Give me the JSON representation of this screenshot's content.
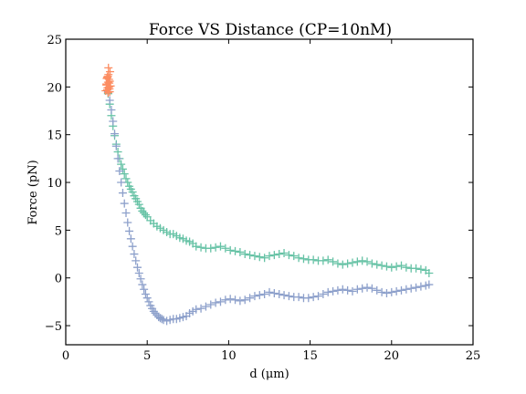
{
  "chart_data": {
    "type": "scatter",
    "title": "Force VS Distance (CP=10nM)",
    "xlabel": "d (μm)",
    "ylabel": "Force (pN)",
    "xlim": [
      0,
      25
    ],
    "ylim": [
      -7,
      25
    ],
    "xticks": [
      0,
      5,
      10,
      15,
      20,
      25
    ],
    "yticks": [
      -5,
      0,
      5,
      10,
      15,
      20,
      25
    ],
    "grid": false,
    "marker": "+",
    "series": [
      {
        "color": "#66c2a5",
        "x": [
          2.6,
          2.7,
          2.8,
          2.9,
          3.0,
          3.1,
          3.2,
          3.3,
          3.4,
          3.5,
          3.6,
          3.7,
          3.8,
          3.9,
          4.0,
          4.1,
          4.2,
          4.3,
          4.4,
          4.5,
          4.6,
          4.7,
          4.8,
          4.9,
          5.0,
          5.2,
          5.4,
          5.6,
          5.8,
          6.0,
          6.2,
          6.4,
          6.6,
          6.8,
          7.0,
          7.2,
          7.4,
          7.6,
          7.8,
          8.0,
          8.3,
          8.6,
          8.9,
          9.2,
          9.5,
          9.8,
          10.1,
          10.4,
          10.7,
          11.0,
          11.3,
          11.6,
          11.9,
          12.2,
          12.5,
          12.8,
          13.1,
          13.4,
          13.7,
          14.0,
          14.3,
          14.6,
          14.9,
          15.2,
          15.5,
          15.8,
          16.1,
          16.4,
          16.7,
          17.0,
          17.3,
          17.6,
          17.9,
          18.2,
          18.5,
          18.8,
          19.1,
          19.4,
          19.7,
          20.0,
          20.3,
          20.6,
          20.9,
          21.2,
          21.5,
          21.8,
          22.1,
          22.3
        ],
        "y": [
          19.3,
          18.2,
          17.0,
          15.9,
          14.9,
          14.0,
          13.2,
          12.5,
          11.9,
          11.4,
          10.9,
          10.4,
          10.0,
          9.6,
          9.3,
          9.0,
          8.6,
          8.3,
          8.0,
          7.7,
          7.3,
          7.0,
          6.8,
          6.6,
          6.4,
          6.0,
          5.7,
          5.4,
          5.2,
          5.0,
          4.8,
          4.6,
          4.6,
          4.4,
          4.2,
          4.1,
          3.9,
          3.8,
          3.6,
          3.3,
          3.2,
          3.1,
          3.1,
          3.2,
          3.3,
          3.1,
          2.9,
          2.8,
          2.7,
          2.5,
          2.4,
          2.3,
          2.2,
          2.1,
          2.3,
          2.4,
          2.5,
          2.6,
          2.4,
          2.3,
          2.1,
          2.0,
          1.9,
          1.9,
          1.8,
          1.8,
          1.9,
          1.7,
          1.5,
          1.4,
          1.5,
          1.6,
          1.7,
          1.8,
          1.7,
          1.5,
          1.4,
          1.3,
          1.2,
          1.1,
          1.2,
          1.3,
          1.1,
          1.0,
          1.0,
          0.9,
          0.8,
          0.5
        ]
      },
      {
        "color": "#8da0cb",
        "x": [
          2.6,
          2.7,
          2.8,
          2.9,
          3.0,
          3.1,
          3.2,
          3.3,
          3.4,
          3.5,
          3.6,
          3.7,
          3.8,
          3.9,
          4.0,
          4.1,
          4.2,
          4.3,
          4.4,
          4.5,
          4.6,
          4.7,
          4.8,
          4.9,
          5.0,
          5.1,
          5.2,
          5.3,
          5.4,
          5.5,
          5.6,
          5.7,
          5.8,
          5.9,
          6.0,
          6.2,
          6.4,
          6.6,
          6.8,
          7.0,
          7.2,
          7.4,
          7.6,
          7.8,
          8.0,
          8.3,
          8.6,
          8.9,
          9.2,
          9.5,
          9.8,
          10.1,
          10.4,
          10.7,
          11.0,
          11.3,
          11.6,
          11.9,
          12.2,
          12.5,
          12.8,
          13.1,
          13.4,
          13.7,
          14.0,
          14.3,
          14.6,
          14.9,
          15.2,
          15.5,
          15.8,
          16.1,
          16.4,
          16.7,
          17.0,
          17.3,
          17.6,
          17.9,
          18.2,
          18.5,
          18.8,
          19.1,
          19.4,
          19.7,
          20.0,
          20.3,
          20.6,
          20.9,
          21.2,
          21.5,
          21.8,
          22.1,
          22.3
        ],
        "y": [
          19.5,
          18.6,
          17.6,
          16.4,
          15.1,
          13.8,
          12.5,
          11.2,
          10.0,
          8.9,
          7.8,
          6.8,
          5.8,
          4.9,
          4.1,
          3.3,
          2.5,
          1.8,
          1.1,
          0.5,
          -0.1,
          -0.7,
          -1.2,
          -1.7,
          -2.1,
          -2.5,
          -2.9,
          -3.2,
          -3.5,
          -3.7,
          -3.9,
          -4.1,
          -4.2,
          -4.3,
          -4.4,
          -4.5,
          -4.4,
          -4.3,
          -4.3,
          -4.2,
          -4.1,
          -4.0,
          -3.7,
          -3.5,
          -3.3,
          -3.2,
          -3.0,
          -2.8,
          -2.6,
          -2.5,
          -2.3,
          -2.2,
          -2.3,
          -2.4,
          -2.3,
          -2.1,
          -1.9,
          -1.8,
          -1.7,
          -1.5,
          -1.6,
          -1.7,
          -1.8,
          -1.9,
          -2.0,
          -2.0,
          -2.1,
          -2.1,
          -2.0,
          -1.9,
          -1.7,
          -1.5,
          -1.4,
          -1.3,
          -1.2,
          -1.3,
          -1.4,
          -1.2,
          -1.1,
          -1.0,
          -1.1,
          -1.3,
          -1.5,
          -1.6,
          -1.5,
          -1.4,
          -1.3,
          -1.2,
          -1.1,
          -1.0,
          -0.9,
          -0.8,
          -0.7
        ]
      },
      {
        "color": "#fc8d62",
        "x": [
          2.45,
          2.5,
          2.52,
          2.55,
          2.57,
          2.6,
          2.62,
          2.65,
          2.68,
          2.7,
          2.72,
          2.75,
          2.6,
          2.55,
          2.65,
          2.5,
          2.7,
          2.58,
          2.62,
          2.67
        ],
        "y": [
          19.6,
          20.3,
          20.9,
          21.0,
          19.9,
          20.5,
          21.3,
          20.0,
          19.8,
          20.6,
          21.6,
          20.1,
          19.4,
          19.7,
          20.8,
          20.2,
          19.5,
          21.1,
          22.0,
          20.4
        ]
      }
    ]
  }
}
